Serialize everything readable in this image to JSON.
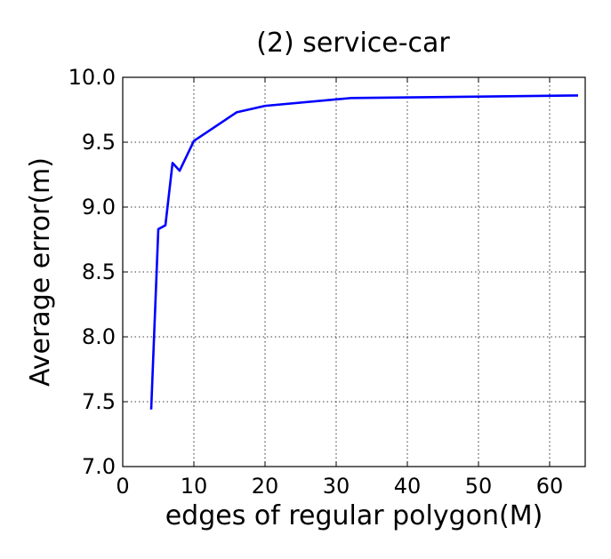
{
  "chart_data": {
    "type": "line",
    "title": "(2) service-car",
    "xlabel": "edges of regular polygon(M)",
    "ylabel": "Average error(m)",
    "xlim": [
      0,
      65
    ],
    "ylim": [
      7.0,
      10.0
    ],
    "xticks": [
      0,
      10,
      20,
      30,
      40,
      50,
      60
    ],
    "yticks": [
      7.0,
      7.5,
      8.0,
      8.5,
      9.0,
      9.5,
      10.0
    ],
    "xtick_labels": [
      "0",
      "10",
      "20",
      "30",
      "40",
      "50",
      "60"
    ],
    "ytick_labels": [
      "7.0",
      "7.5",
      "8.0",
      "8.5",
      "9.0",
      "9.5",
      "10.0"
    ],
    "grid": true,
    "series": [
      {
        "color": "#0000ff",
        "x": [
          4,
          5,
          6,
          7,
          8,
          10,
          16,
          20,
          32,
          64
        ],
        "y": [
          7.44,
          8.83,
          8.86,
          9.34,
          9.28,
          9.51,
          9.73,
          9.78,
          9.84,
          9.86
        ]
      }
    ]
  }
}
